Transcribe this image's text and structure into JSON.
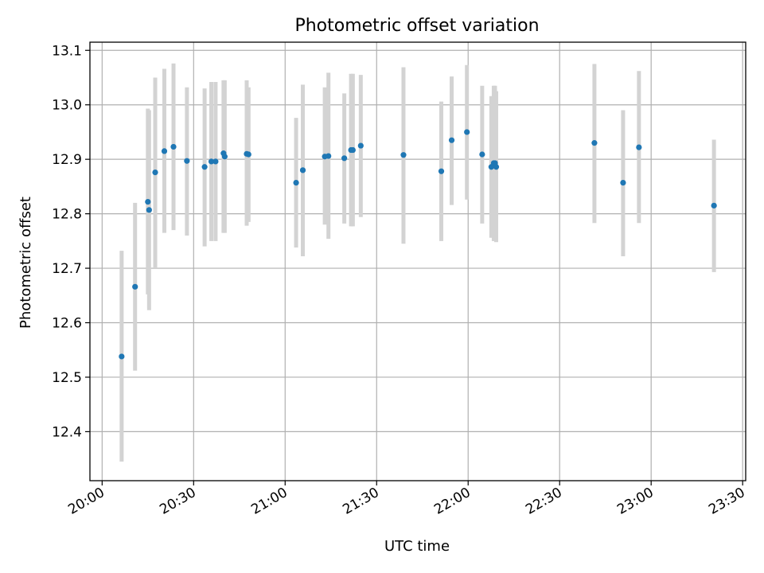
{
  "chart_data": {
    "type": "scatter",
    "title": "Photometric offset variation",
    "xlabel": "UTC time",
    "ylabel": "Photometric offset",
    "grid": true,
    "legend": "none",
    "xlim": [
      "19:56",
      "23:31"
    ],
    "ylim": [
      12.31,
      13.115
    ],
    "x_ticks": [
      "20:00",
      "20:30",
      "21:00",
      "21:30",
      "22:00",
      "22:30",
      "23:00",
      "23:30"
    ],
    "y_ticks": [
      12.4,
      12.5,
      12.6,
      12.7,
      12.8,
      12.9,
      13.0,
      13.1
    ],
    "colors": {
      "marker": "#1f77b4",
      "errorbar": "#d3d3d3",
      "grid": "#b0b0b0"
    },
    "points": [
      {
        "x": "20:06:24",
        "y": 12.538,
        "ylo": 12.345,
        "yhi": 12.732
      },
      {
        "x": "20:10:48",
        "y": 12.666,
        "ylo": 12.512,
        "yhi": 12.82
      },
      {
        "x": "20:15:00",
        "y": 12.822,
        "ylo": 12.652,
        "yhi": 12.993
      },
      {
        "x": "20:15:24",
        "y": 12.807,
        "ylo": 12.623,
        "yhi": 12.99
      },
      {
        "x": "20:17:24",
        "y": 12.876,
        "ylo": 12.7,
        "yhi": 13.05
      },
      {
        "x": "20:20:24",
        "y": 12.915,
        "ylo": 12.765,
        "yhi": 13.066
      },
      {
        "x": "20:23:24",
        "y": 12.923,
        "ylo": 12.77,
        "yhi": 13.076
      },
      {
        "x": "20:27:48",
        "y": 12.897,
        "ylo": 12.76,
        "yhi": 13.032
      },
      {
        "x": "20:33:36",
        "y": 12.886,
        "ylo": 12.74,
        "yhi": 13.03
      },
      {
        "x": "20:35:48",
        "y": 12.896,
        "ylo": 12.75,
        "yhi": 13.042
      },
      {
        "x": "20:37:12",
        "y": 12.896,
        "ylo": 12.75,
        "yhi": 13.042
      },
      {
        "x": "20:39:48",
        "y": 12.911,
        "ylo": 12.765,
        "yhi": 13.045
      },
      {
        "x": "20:40:12",
        "y": 12.905,
        "ylo": 12.765,
        "yhi": 13.045
      },
      {
        "x": "20:47:24",
        "y": 12.91,
        "ylo": 12.778,
        "yhi": 13.045
      },
      {
        "x": "20:48:00",
        "y": 12.909,
        "ylo": 12.785,
        "yhi": 13.032
      },
      {
        "x": "21:03:36",
        "y": 12.857,
        "ylo": 12.738,
        "yhi": 12.976
      },
      {
        "x": "21:05:48",
        "y": 12.88,
        "ylo": 12.722,
        "yhi": 13.037
      },
      {
        "x": "21:13:00",
        "y": 12.905,
        "ylo": 12.78,
        "yhi": 13.032
      },
      {
        "x": "21:14:12",
        "y": 12.906,
        "ylo": 12.754,
        "yhi": 13.059
      },
      {
        "x": "21:19:24",
        "y": 12.902,
        "ylo": 12.782,
        "yhi": 13.021
      },
      {
        "x": "21:21:36",
        "y": 12.917,
        "ylo": 12.777,
        "yhi": 13.057
      },
      {
        "x": "21:22:12",
        "y": 12.917,
        "ylo": 12.777,
        "yhi": 13.057
      },
      {
        "x": "21:24:48",
        "y": 12.925,
        "ylo": 12.794,
        "yhi": 13.055
      },
      {
        "x": "21:38:48",
        "y": 12.908,
        "ylo": 12.745,
        "yhi": 13.069
      },
      {
        "x": "21:51:12",
        "y": 12.878,
        "ylo": 12.75,
        "yhi": 13.006
      },
      {
        "x": "21:54:36",
        "y": 12.935,
        "ylo": 12.816,
        "yhi": 13.052
      },
      {
        "x": "21:59:36",
        "y": 12.95,
        "ylo": 12.826,
        "yhi": 13.073
      },
      {
        "x": "22:04:36",
        "y": 12.909,
        "ylo": 12.782,
        "yhi": 13.035
      },
      {
        "x": "22:07:36",
        "y": 12.886,
        "ylo": 12.756,
        "yhi": 13.016
      },
      {
        "x": "22:08:24",
        "y": 12.893,
        "ylo": 12.75,
        "yhi": 13.035
      },
      {
        "x": "22:08:48",
        "y": 12.893,
        "ylo": 12.75,
        "yhi": 13.035
      },
      {
        "x": "22:09:12",
        "y": 12.886,
        "ylo": 12.748,
        "yhi": 13.025
      },
      {
        "x": "22:41:24",
        "y": 12.93,
        "ylo": 12.783,
        "yhi": 13.075
      },
      {
        "x": "22:50:48",
        "y": 12.857,
        "ylo": 12.722,
        "yhi": 12.99
      },
      {
        "x": "22:56:00",
        "y": 12.922,
        "ylo": 12.783,
        "yhi": 13.062
      },
      {
        "x": "23:20:36",
        "y": 12.815,
        "ylo": 12.693,
        "yhi": 12.936
      }
    ]
  }
}
